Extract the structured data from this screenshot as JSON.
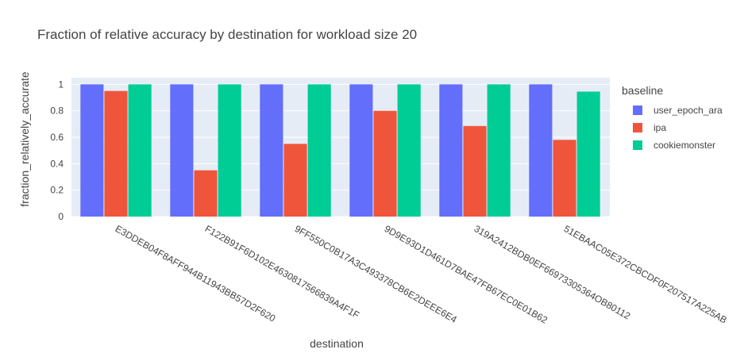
{
  "chart_data": {
    "type": "bar",
    "title": "Fraction of relative accuracy by destination for workload size 20",
    "xlabel": "destination",
    "ylabel": "fraction_relatively_accurate",
    "legend_title": "baseline",
    "legend_placement": "right",
    "ylim": [
      0,
      1.05
    ],
    "yticks": [
      0,
      0.2,
      0.4,
      0.6,
      0.8,
      1
    ],
    "ytick_labels": [
      "0",
      "0.2",
      "0.4",
      "0.6",
      "0.8",
      "1"
    ],
    "grid": true,
    "categories": [
      "E3DDEB04F8AFF944B11943BB57D2F620",
      "F122B91F6D102E4630817566839A4F1F",
      "9FF550C0B17A3C493378CB6E2DEEE6E4",
      "9D9E93D1D461D7BAE47FB67EC0E01B62",
      "319A2412BDB0EF66973305364OB80112",
      "51EBAAC05E372CBCDF0F207517A225AB"
    ],
    "series": [
      {
        "name": "user_epoch_ara",
        "color": "#636efa",
        "values": [
          1,
          1,
          1,
          1,
          1,
          1
        ]
      },
      {
        "name": "ipa",
        "color": "#ef553b",
        "values": [
          0.95,
          0.35,
          0.55,
          0.8,
          0.685,
          0.58
        ]
      },
      {
        "name": "cookiemonster",
        "color": "#00cc96",
        "values": [
          1,
          1,
          1,
          1,
          1,
          0.945
        ]
      }
    ]
  }
}
